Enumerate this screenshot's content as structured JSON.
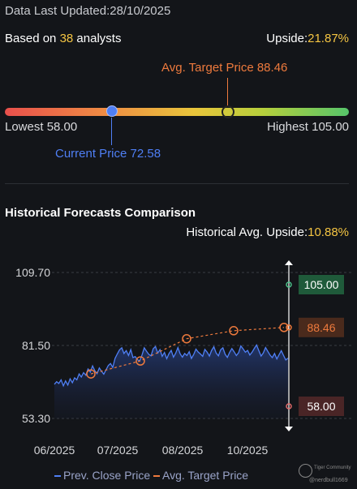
{
  "header": {
    "updated": "Data Last Updated:28/10/2025",
    "based_prefix": "Based on ",
    "analyst_count": "38",
    "based_suffix": " analysts",
    "upside_label": "Upside:",
    "upside_value": "21.87%"
  },
  "gauge": {
    "target_label": "Avg. Target Price 88.46",
    "lowest_label": "Lowest 58.00",
    "highest_label": "Highest 105.00",
    "current_label": "Current Price 72.58",
    "low": 58.0,
    "high": 105.0,
    "current": 72.58,
    "target": 88.46
  },
  "history": {
    "title": "Historical Forecasts Comparison",
    "avg_upside_label": "Historical Avg. Upside:",
    "avg_upside_value": "10.88%"
  },
  "legend": {
    "prev_close": "Prev. Close Price",
    "avg_target": "Avg. Target Price"
  },
  "watermark": {
    "line1": "Tiger Community",
    "line2": "@nerdbull1669"
  },
  "colors": {
    "price_line": "#4f7ff5",
    "target_line": "#ee7a3d",
    "high_tag": "#1f5a3a",
    "target_tag": "#4a2a1c",
    "low_tag": "#4a2526"
  },
  "chart_data": {
    "type": "line",
    "title": "Historical Forecasts Comparison",
    "x_ticks": [
      "06/2025",
      "07/2025",
      "08/2025",
      "10/2025"
    ],
    "y_ticks": [
      109.7,
      81.5,
      53.3
    ],
    "y_tick_labels": [
      "109.70",
      "81.50",
      "53.30"
    ],
    "ylim": [
      53.3,
      109.7
    ],
    "grid": "horizontal dashed",
    "series": [
      {
        "name": "Prev. Close Price",
        "type": "area",
        "values": [
          66.5,
          67.5,
          66.8,
          68.2,
          65.9,
          67.8,
          66.2,
          68.6,
          67.1,
          69.0,
          68.2,
          70.5,
          69.3,
          71.0,
          70.0,
          72.4,
          71.2,
          73.6,
          71.8,
          70.6,
          72.8,
          71.5,
          70.4,
          72.1,
          73.8,
          74.5,
          73.0,
          76.5,
          78.2,
          79.8,
          80.6,
          78.4,
          79.5,
          77.6,
          79.9,
          76.8,
          77.2,
          76.0,
          75.5,
          77.8,
          80.6,
          79.3,
          78.1,
          77.5,
          80.2,
          81.1,
          78.6,
          79.9,
          77.3,
          78.8,
          76.4,
          78.3,
          79.6,
          77.0,
          78.5,
          80.7,
          78.2,
          77.0,
          78.4,
          77.6,
          79.1,
          76.5,
          78.0,
          80.1,
          79.0,
          78.2,
          77.3,
          80.0,
          78.9,
          77.4,
          79.6,
          81.0,
          78.6,
          77.5,
          79.8,
          80.6,
          78.1,
          76.9,
          78.8,
          80.3,
          79.1,
          77.6,
          78.7,
          81.3,
          80.2,
          78.9,
          79.6,
          77.8,
          78.9,
          80.4,
          81.7,
          79.5,
          77.4,
          78.6,
          80.7,
          79.2,
          77.8,
          76.8,
          78.4,
          76.3,
          77.9,
          79.5,
          77.6,
          75.9,
          76.6
        ]
      },
      {
        "name": "Avg. Target Price",
        "type": "line",
        "points": [
          {
            "x": "06/2025",
            "y": 70.5
          },
          {
            "x": "07/2025",
            "y": 75.5
          },
          {
            "x": "08/2025",
            "y": 84.1
          },
          {
            "x": "09/2025",
            "y": 87.2
          },
          {
            "x": "10/2025",
            "y": 88.46
          }
        ]
      }
    ],
    "annotations": [
      {
        "label": "105.00",
        "value": 105.0,
        "kind": "high"
      },
      {
        "label": "88.46",
        "value": 88.46,
        "kind": "target"
      },
      {
        "label": "58.00",
        "value": 58.0,
        "kind": "low"
      }
    ]
  }
}
